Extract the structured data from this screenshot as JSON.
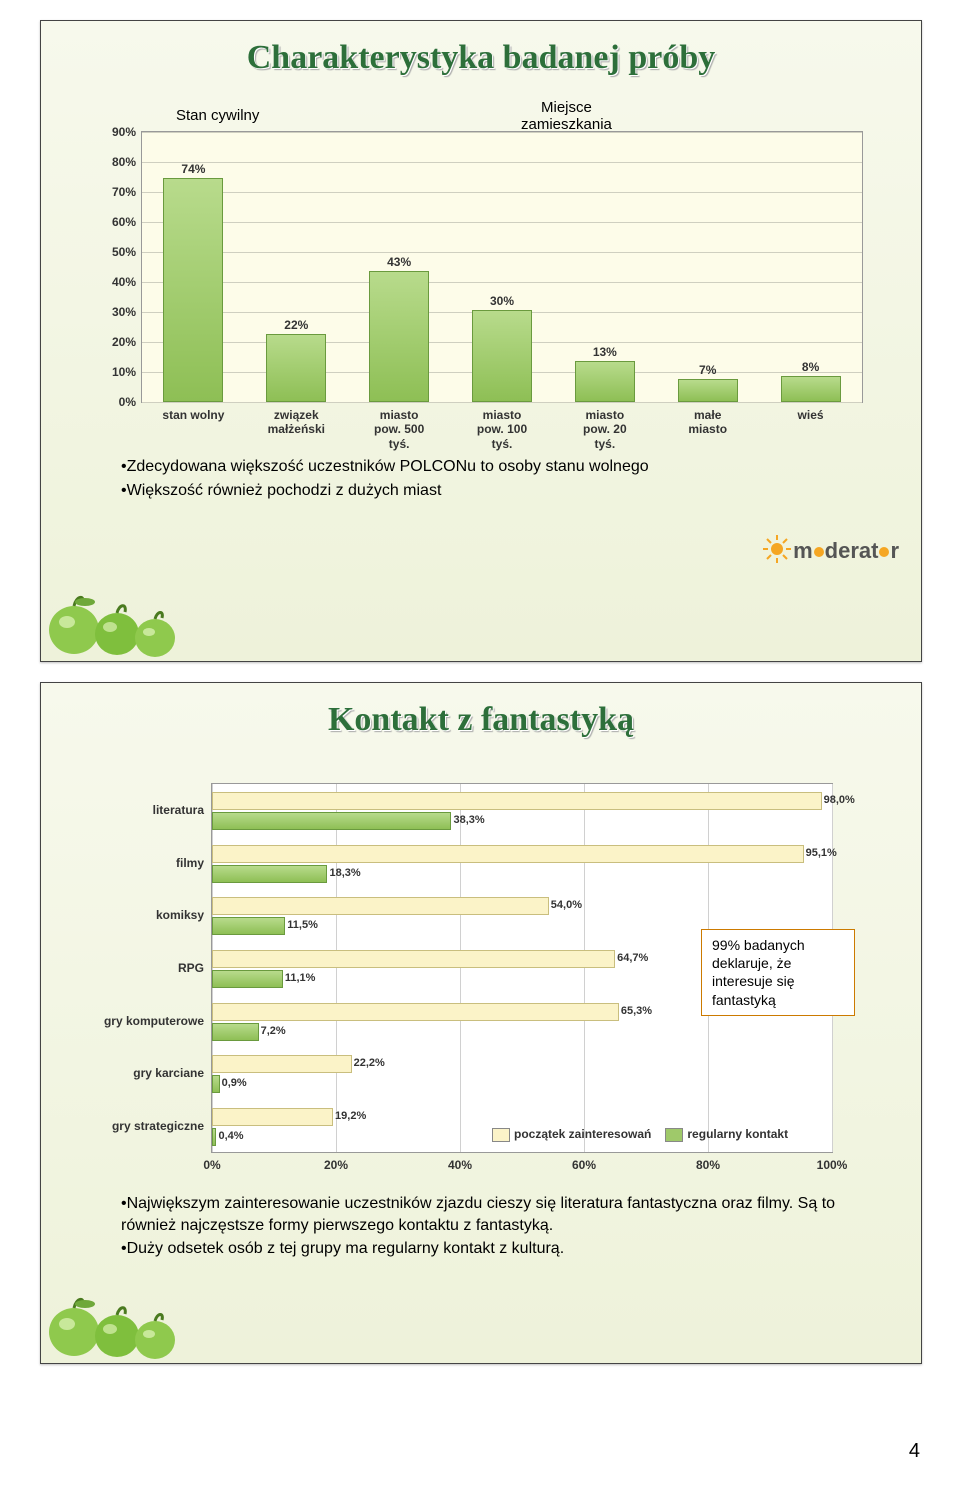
{
  "pageNumber": "4",
  "slide1": {
    "title": "Charakterystyka badanej próby",
    "sectionLabels": {
      "civil": "Stan cywilny",
      "place": "Miejsce\nzamieszkania"
    },
    "vbar": {
      "type": "bar",
      "background_color": "#fdfce9",
      "grid_color": "#cfcfc0",
      "bar_fill": "#9fc96a",
      "bar_border": "#6a9a3e",
      "ylim": [
        0,
        90
      ],
      "ytick_step": 10,
      "y_ticks": [
        "0%",
        "10%",
        "20%",
        "30%",
        "40%",
        "50%",
        "60%",
        "70%",
        "80%",
        "90%"
      ],
      "label_fontsize": 12,
      "items": [
        {
          "key": "stan wolny",
          "value": 74,
          "label": "74%"
        },
        {
          "key": "związek\nmałżeński",
          "value": 22,
          "label": "22%"
        },
        {
          "key": "miasto\npow. 500\ntyś.",
          "value": 43,
          "label": "43%"
        },
        {
          "key": "miasto\npow. 100\ntyś.",
          "value": 30,
          "label": "30%"
        },
        {
          "key": "miasto\npow. 20\ntyś.",
          "value": 13,
          "label": "13%"
        },
        {
          "key": "małe\nmiasto",
          "value": 7,
          "label": "7%"
        },
        {
          "key": "wieś",
          "value": 8,
          "label": "8%"
        }
      ]
    },
    "notes": [
      "•Zdecydowana większość uczestników POLCONu to osoby stanu wolnego",
      "•Większość również pochodzi z dużych miast"
    ],
    "logo_text_pre": "m",
    "logo_text_mid": "derat",
    "logo_text_post": "r"
  },
  "slide2": {
    "title": "Kontakt z fantastyką",
    "hbar": {
      "type": "bar-horizontal",
      "background_color": "#ffffff",
      "grid_color": "#d0d0d0",
      "xlim": [
        0,
        100
      ],
      "xtick_step": 20,
      "x_ticks": [
        "0%",
        "20%",
        "40%",
        "60%",
        "80%",
        "100%"
      ],
      "colors": {
        "first": "#fbf3c8",
        "first_border": "#c9be7e",
        "reg": "#9fc96a",
        "reg_border": "#6a9a3e"
      },
      "label_fontsize": 12,
      "rows": [
        {
          "cat": "literatura",
          "first": 98.0,
          "first_label": "98,0%",
          "reg": 38.3,
          "reg_label": "38,3%"
        },
        {
          "cat": "filmy",
          "first": 95.1,
          "first_label": "95,1%",
          "reg": 18.3,
          "reg_label": "18,3%"
        },
        {
          "cat": "komiksy",
          "first": 54.0,
          "first_label": "54,0%",
          "reg": 11.5,
          "reg_label": "11,5%"
        },
        {
          "cat": "RPG",
          "first": 64.7,
          "first_label": "64,7%",
          "reg": 11.1,
          "reg_label": "11,1%"
        },
        {
          "cat": "gry komputerowe",
          "first": 65.3,
          "first_label": "65,3%",
          "reg": 7.2,
          "reg_label": "7,2%"
        },
        {
          "cat": "gry karciane",
          "first": 22.2,
          "first_label": "22,2%",
          "reg": 0.9,
          "reg_label": "0,9%"
        },
        {
          "cat": "gry strategiczne",
          "first": 19.2,
          "first_label": "19,2%",
          "reg": 0.4,
          "reg_label": "0,4%"
        }
      ],
      "legend": {
        "first": "początek zainteresowań",
        "reg": "regularny kontakt"
      }
    },
    "tip": {
      "border_color": "#cc7a00",
      "lines": [
        "99% badanych",
        "deklaruje, że",
        "interesuje się",
        "fantastyką"
      ]
    },
    "notes": [
      "•Największym zainteresowanie uczestników zjazdu cieszy się literatura fantastyczna oraz filmy. Są to również najczęstsze formy pierwszego kontaktu z fantastyką.",
      "•Duży odsetek osób z tej grupy ma regularny kontakt z kulturą."
    ]
  }
}
